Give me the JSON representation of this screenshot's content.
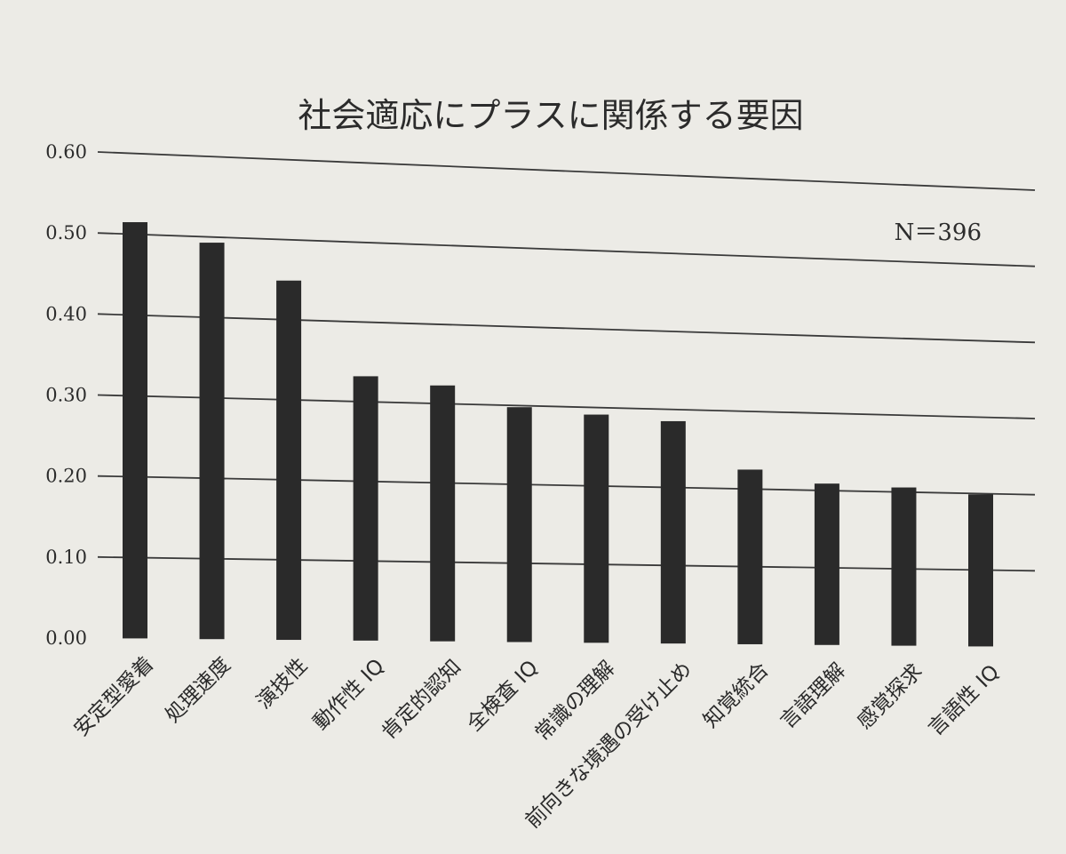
{
  "chart_data": {
    "type": "bar",
    "title": "社会適応にプラスに関係する要因",
    "annotation": "N＝396",
    "categories": [
      "安定型愛着",
      "処理速度",
      "演技性",
      "動作性 IQ",
      "肯定的認知",
      "全検査 IQ",
      "常識の理解",
      "前向きな境遇の受け止め",
      "知覚統合",
      "言語理解",
      "感覚探求",
      "言語性 IQ"
    ],
    "values": [
      0.515,
      0.493,
      0.449,
      0.332,
      0.323,
      0.298,
      0.291,
      0.285,
      0.225,
      0.209,
      0.206,
      0.199
    ],
    "yticks": [
      "0.00",
      "0.10",
      "0.20",
      "0.30",
      "0.40",
      "0.50",
      "0.60"
    ],
    "ylim": [
      0,
      0.6
    ],
    "grid": true,
    "colors": {
      "bar": "#2a2a2a",
      "grid": "#3a3a3a",
      "background": "#ecebe6"
    }
  }
}
